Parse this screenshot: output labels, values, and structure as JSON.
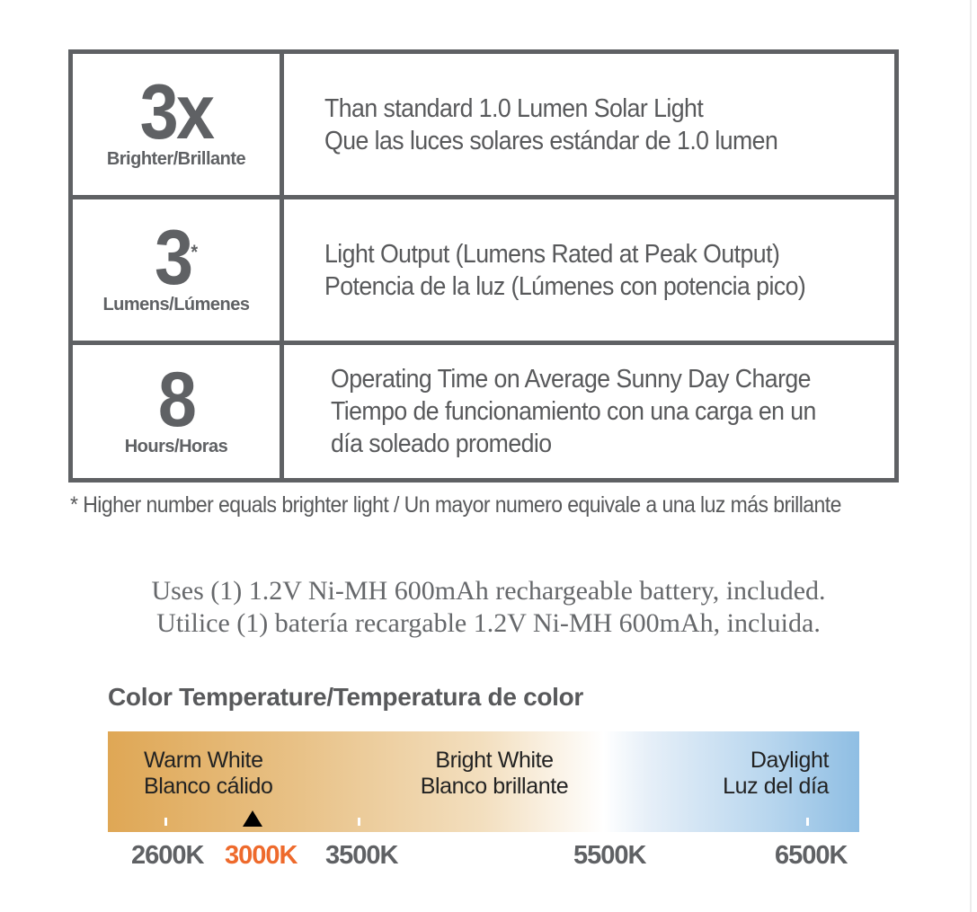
{
  "specs": [
    {
      "value": "3x",
      "sup": "",
      "unit": "Brighter/Brillante",
      "lines": [
        "Than standard 1.0 Lumen Solar Light",
        "Que las luces solares estándar de 1.0 lumen"
      ]
    },
    {
      "value": "3",
      "sup": "*",
      "unit": "Lumens/Lúmenes",
      "lines": [
        "Light Output (Lumens Rated at Peak Output)",
        "Potencia de la luz (Lúmenes con potencia pico)"
      ]
    },
    {
      "value": "8",
      "sup": "",
      "unit": "Hours/Horas",
      "lines": [
        "Operating Time on Average Sunny Day Charge",
        "Tiempo de funcionamiento con una carga en un",
        "día soleado promedio"
      ]
    }
  ],
  "footnote": "* Higher number equals brighter light / Un mayor numero equivale a una luz más brillante",
  "battery": [
    "Uses (1) 1.2V Ni-MH 600mAh rechargeable battery, included.",
    "Utilice (1) batería recargable 1.2V Ni-MH 600mAh, incluida."
  ],
  "color_temp": {
    "title": "Color Temperature/Temperatura de color",
    "zones": [
      {
        "lines": [
          "Warm White",
          "Blanco cálido"
        ]
      },
      {
        "lines": [
          "Bright White",
          "Blanco brillante"
        ]
      },
      {
        "lines": [
          "Daylight",
          "Luz del día"
        ]
      }
    ],
    "scale": [
      "2600K",
      "3000K",
      "3500K",
      "5500K",
      "6500K"
    ],
    "selected": "3000K",
    "colors": {
      "warm": "#dfa755",
      "white": "#ffffff",
      "daylight": "#8fbee3",
      "selected": "#ee6a2c"
    }
  }
}
